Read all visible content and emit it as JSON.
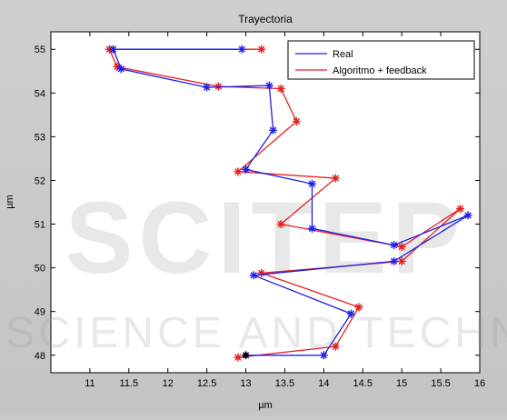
{
  "chart_data": {
    "type": "line",
    "title": "Trayectoria",
    "xlabel": "µm",
    "ylabel": "µm",
    "xlim": [
      10.5,
      16.0
    ],
    "ylim": [
      47.6,
      55.4
    ],
    "x_ticks": [
      "11",
      "11.5",
      "12",
      "12.5",
      "13",
      "13.5",
      "14",
      "14.5",
      "15",
      "15.5",
      "16"
    ],
    "y_ticks": [
      "48",
      "49",
      "50",
      "51",
      "52",
      "53",
      "54",
      "55"
    ],
    "grid": false,
    "legend_position": "top-right",
    "series": [
      {
        "name": "Real",
        "color": "#1f1fe6",
        "marker": "star",
        "x": [
          13.0,
          14.0,
          14.35,
          13.1,
          14.9,
          15.85,
          14.9,
          13.85,
          13.85,
          13.0,
          13.35,
          13.3,
          12.5,
          11.4,
          11.3,
          12.95
        ],
        "y": [
          48.0,
          48.0,
          48.95,
          49.83,
          50.15,
          51.2,
          50.52,
          50.9,
          51.92,
          52.25,
          53.15,
          54.17,
          54.13,
          54.55,
          55.0,
          55.0
        ]
      },
      {
        "name": "Algoritmo + feedback",
        "color": "#e61e1e",
        "marker": "star",
        "x": [
          12.9,
          14.15,
          14.45,
          13.2,
          15.0,
          15.75,
          15.0,
          13.45,
          14.15,
          12.9,
          13.65,
          13.45,
          12.65,
          11.35,
          11.25,
          13.2
        ],
        "y": [
          47.95,
          48.2,
          49.1,
          49.88,
          50.15,
          51.35,
          50.48,
          51.0,
          52.05,
          52.2,
          53.35,
          54.1,
          54.15,
          54.6,
          55.0,
          55.0
        ]
      }
    ],
    "start_point": {
      "x": 13.0,
      "y": 48.0,
      "color": "#000000"
    }
  },
  "watermark": {
    "line1": "SCITEP",
    "line2": "SCIENCE AND TECHN"
  }
}
